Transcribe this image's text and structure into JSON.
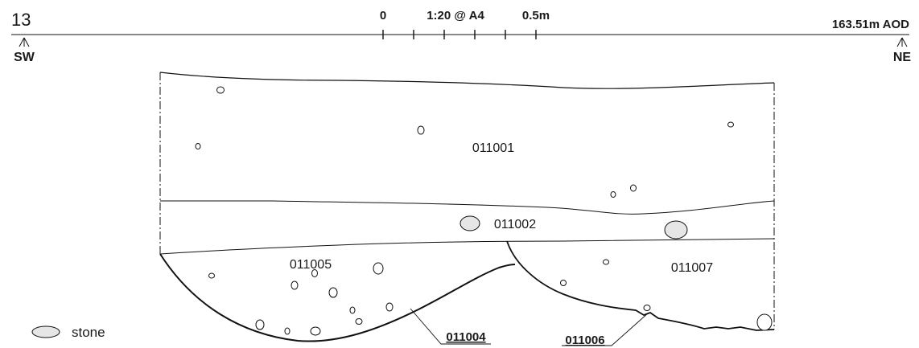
{
  "section_number": "13",
  "scale": {
    "start_label": "0",
    "ratio_label": "1:20 @ A4",
    "end_label": "0.5m"
  },
  "datum_label": "163.51m AOD",
  "orientation": {
    "left": "SW",
    "right": "NE"
  },
  "contexts": [
    {
      "id": "011001",
      "kind": "fill"
    },
    {
      "id": "011002",
      "kind": "fill"
    },
    {
      "id": "011005",
      "kind": "fill"
    },
    {
      "id": "011007",
      "kind": "fill"
    },
    {
      "id": "011004",
      "kind": "cut"
    },
    {
      "id": "011006",
      "kind": "cut"
    }
  ],
  "legend": {
    "stone_label": "stone"
  }
}
